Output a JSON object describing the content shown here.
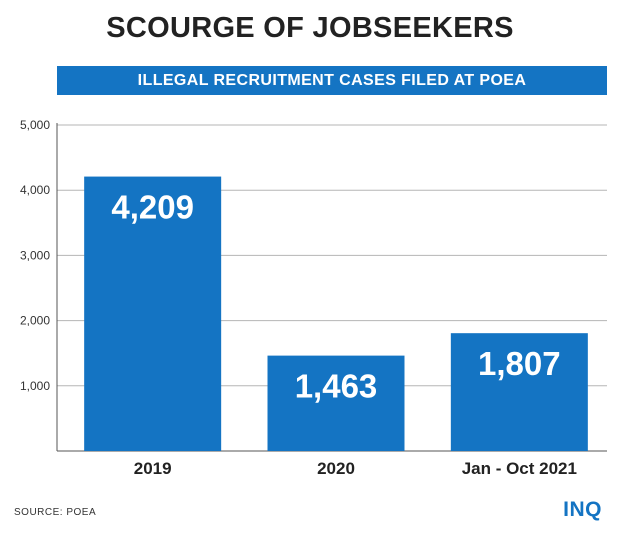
{
  "header": {
    "title": "SCOURGE OF JOBSEEKERS",
    "subtitle": "ILLEGAL RECRUITMENT CASES FILED AT POEA"
  },
  "chart_data": {
    "type": "bar",
    "title": "ILLEGAL RECRUITMENT CASES FILED AT POEA",
    "categories": [
      "2019",
      "2020",
      "Jan - Oct 2021"
    ],
    "values": [
      4209,
      1463,
      1807
    ],
    "value_labels": [
      "4,209",
      "1,463",
      "1,807"
    ],
    "ylim": [
      0,
      5000
    ],
    "yticks": [
      1000,
      2000,
      3000,
      4000,
      5000
    ],
    "ytick_labels": [
      "1,000",
      "2,000",
      "3,000",
      "4,000",
      "5,000"
    ],
    "grid": true,
    "bar_color": "#1474c3"
  },
  "footer": {
    "source": "SOURCE:  POEA",
    "logo": "INQ"
  },
  "colors": {
    "accent": "#1474c3",
    "grid": "#b5b5b5",
    "text": "#222222"
  }
}
